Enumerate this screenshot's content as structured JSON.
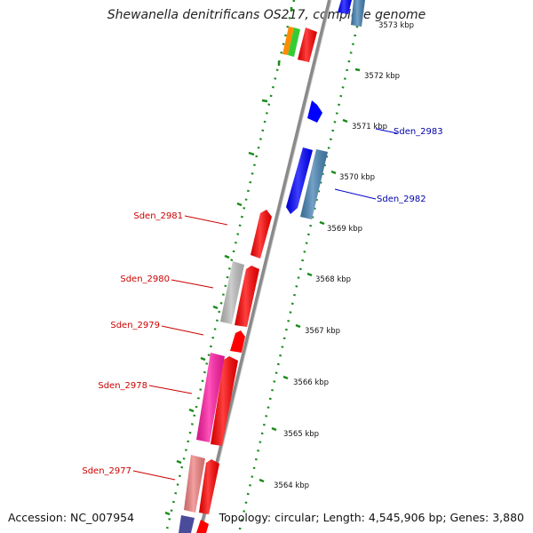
{
  "title": "Shewanella denitrificans OS217, complete genome",
  "footer": {
    "accession": "Accession: NC_007954",
    "summary": "Topology: circular; Length: 4,545,906 bp; Genes: 3,880"
  },
  "colors": {
    "backbone": "#8a8a8a",
    "ruler": "#1a8a1a",
    "red": "#ff0000",
    "blue": "#0000ff",
    "steelblue": "#4682b4",
    "gray": "#bdbdbd",
    "magenta": "#ff1aa3",
    "salmon": "#f08080",
    "orange": "#ff8c00",
    "green": "#33cc33",
    "slate": "#4b4b9c",
    "label_red": "#cc0000",
    "label_blue": "#0000aa"
  },
  "scale_ticks": [
    "3573 kbp",
    "3572 kbp",
    "3571 kbp",
    "3570 kbp",
    "3569 kbp",
    "3568 kbp",
    "3567 kbp",
    "3566 kbp",
    "3565 kbp",
    "3564 kbp"
  ],
  "gene_labels": [
    {
      "name": "Sden_2983",
      "color": "blue"
    },
    {
      "name": "Sden_2982",
      "color": "blue"
    },
    {
      "name": "Sden_2981",
      "color": "red"
    },
    {
      "name": "Sden_2980",
      "color": "red"
    },
    {
      "name": "Sden_2979",
      "color": "red"
    },
    {
      "name": "Sden_2978",
      "color": "red"
    },
    {
      "name": "Sden_2977",
      "color": "red"
    }
  ]
}
